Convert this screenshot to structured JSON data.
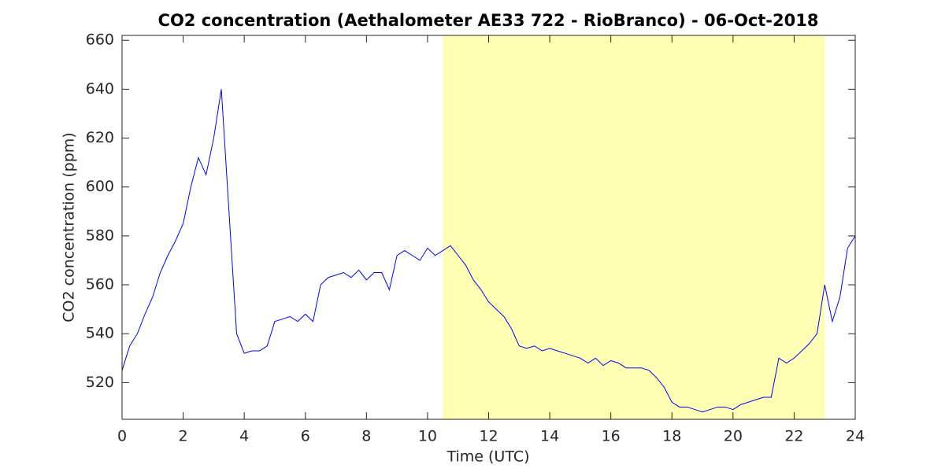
{
  "chart_data": {
    "type": "line",
    "title": "CO2 concentration (Aethalometer AE33 722 - RioBranco) - 06-Oct-2018",
    "x_label": "Time (UTC)",
    "y_label": "CO2 concentration (ppm)",
    "xlim": [
      0,
      24
    ],
    "xticks": [
      0,
      2,
      4,
      6,
      8,
      10,
      12,
      14,
      16,
      18,
      20,
      22,
      24
    ],
    "ylim": [
      505,
      662
    ],
    "yticks": [
      520,
      540,
      560,
      580,
      600,
      620,
      640,
      660
    ],
    "highlight": {
      "xlim": [
        10.5,
        23
      ],
      "color": "#ffffb3"
    },
    "x": [
      0,
      0.25,
      0.5,
      0.75,
      1,
      1.25,
      1.5,
      1.75,
      2,
      2.25,
      2.5,
      2.75,
      3,
      3.25,
      3.5,
      3.75,
      4,
      4.25,
      4.5,
      4.75,
      5,
      5.25,
      5.5,
      5.75,
      6,
      6.25,
      6.5,
      6.75,
      7,
      7.25,
      7.5,
      7.75,
      8,
      8.25,
      8.5,
      8.75,
      9,
      9.25,
      9.5,
      9.75,
      10,
      10.25,
      10.5,
      10.75,
      11,
      11.25,
      11.5,
      11.75,
      12,
      12.25,
      12.5,
      12.75,
      13,
      13.25,
      13.5,
      13.75,
      14,
      14.25,
      14.5,
      14.75,
      15,
      15.25,
      15.5,
      15.75,
      16,
      16.25,
      16.5,
      16.75,
      17,
      17.25,
      17.5,
      17.75,
      18,
      18.25,
      18.5,
      18.75,
      19,
      19.25,
      19.5,
      19.75,
      20,
      20.25,
      20.5,
      20.75,
      21,
      21.25,
      21.5,
      21.75,
      22,
      22.25,
      22.5,
      22.75,
      23,
      23.25,
      23.5,
      23.75,
      24
    ],
    "series": [
      {
        "color": "#0000ff",
        "values": [
          525,
          535,
          540,
          548,
          555,
          565,
          572,
          578,
          585,
          600,
          612,
          605,
          620,
          640,
          590,
          540,
          532,
          533,
          533,
          535,
          545,
          546,
          547,
          545,
          548,
          545,
          560,
          563,
          564,
          565,
          563,
          566,
          562,
          565,
          565,
          558,
          572,
          574,
          572,
          570,
          575,
          572,
          574,
          576,
          572,
          568,
          562,
          558,
          553,
          550,
          547,
          542,
          535,
          534,
          535,
          533,
          534,
          533,
          532,
          531,
          530,
          528,
          530,
          527,
          529,
          528,
          526,
          526,
          526,
          525,
          522,
          518,
          512,
          510,
          510,
          509,
          508,
          509,
          510,
          510,
          509,
          511,
          512,
          513,
          514,
          514,
          530,
          528,
          530,
          533,
          536,
          540,
          560,
          545,
          555,
          575,
          580
        ]
      }
    ]
  }
}
